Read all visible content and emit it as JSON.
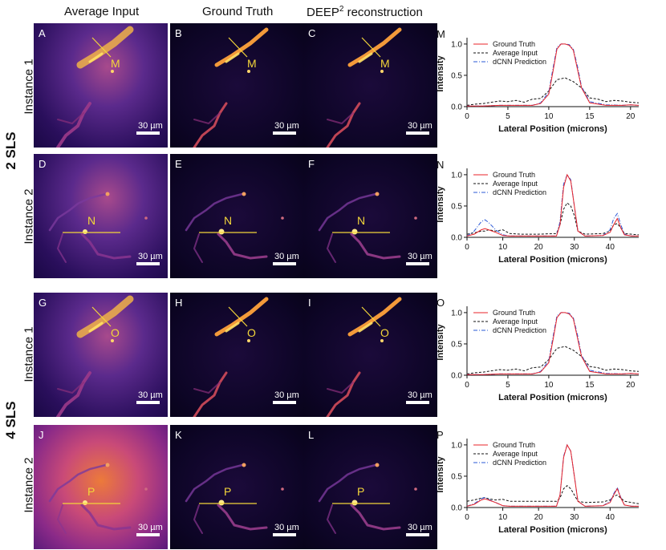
{
  "columns": {
    "average_input": "Average Input",
    "ground_truth": "Ground Truth",
    "deep_reconstruction_main": "DEEP",
    "deep_reconstruction_sup": "2",
    "deep_reconstruction_rest": " reconstruction"
  },
  "instances": [
    "Instance 1",
    "Instance 2",
    "Instance 1",
    "Instance 2"
  ],
  "groups": [
    "2 SLS",
    "4 SLS"
  ],
  "scalebar_text": "30 µm",
  "panels": [
    {
      "letter": "A",
      "profile": "M",
      "style": "avg",
      "instance": 1
    },
    {
      "letter": "B",
      "profile": "M",
      "style": "gt",
      "instance": 1
    },
    {
      "letter": "C",
      "profile": "M",
      "style": "gt",
      "instance": 1
    },
    {
      "letter": "D",
      "profile": "N",
      "style": "avg",
      "instance": 2
    },
    {
      "letter": "E",
      "profile": "N",
      "style": "gt",
      "instance": 2
    },
    {
      "letter": "F",
      "profile": "N",
      "style": "gt",
      "instance": 2
    },
    {
      "letter": "G",
      "profile": "O",
      "style": "avg",
      "instance": 1
    },
    {
      "letter": "H",
      "profile": "O",
      "style": "gt",
      "instance": 1
    },
    {
      "letter": "I",
      "profile": "O",
      "style": "gt",
      "instance": 1
    },
    {
      "letter": "J",
      "profile": "P",
      "style": "avg4",
      "instance": 2
    },
    {
      "letter": "K",
      "profile": "P",
      "style": "gt",
      "instance": 2
    },
    {
      "letter": "L",
      "profile": "P",
      "style": "gt",
      "instance": 2
    }
  ],
  "colors": {
    "ground_truth": "#e8232a",
    "average_input": "#111111",
    "prediction": "#2a58d6",
    "marker": "#f3d63a"
  },
  "chart_data": [
    {
      "type": "line",
      "letter": "M",
      "xlabel": "Lateral Position (microns)",
      "ylabel": "Intensity",
      "xlim": [
        0,
        21
      ],
      "ylim": [
        0,
        1.05
      ],
      "xticks": [
        0,
        5,
        10,
        15,
        20
      ],
      "yticks": [
        0.0,
        0.5,
        1.0
      ],
      "legend": "top-left",
      "series": [
        {
          "name": "Ground Truth",
          "color": "#e8232a",
          "dash": "solid",
          "x": [
            0,
            2,
            4,
            6,
            8,
            9,
            10,
            10.5,
            11,
            11.5,
            12,
            12.5,
            13,
            13.5,
            14,
            15,
            17,
            19,
            20,
            21
          ],
          "y": [
            0.01,
            0.01,
            0.02,
            0.02,
            0.02,
            0.05,
            0.2,
            0.55,
            0.92,
            1.0,
            1.0,
            0.98,
            0.9,
            0.6,
            0.3,
            0.06,
            0.02,
            0.02,
            0.03,
            0.02
          ]
        },
        {
          "name": "Average Input",
          "color": "#111111",
          "dash": "dashed",
          "x": [
            0,
            1,
            2,
            3,
            4,
            5,
            6,
            7,
            8,
            9,
            10,
            11,
            12,
            13,
            14,
            15,
            16,
            17,
            18,
            19,
            20,
            21
          ],
          "y": [
            0.02,
            0.04,
            0.05,
            0.07,
            0.09,
            0.08,
            0.1,
            0.07,
            0.12,
            0.13,
            0.25,
            0.43,
            0.46,
            0.4,
            0.3,
            0.14,
            0.12,
            0.08,
            0.1,
            0.09,
            0.07,
            0.06
          ]
        },
        {
          "name": "dCNN Prediction",
          "color": "#2a58d6",
          "dash": "dashdot",
          "x": [
            0,
            2,
            4,
            6,
            8,
            9,
            10,
            10.5,
            11,
            11.5,
            12,
            12.5,
            13,
            13.5,
            14,
            15,
            17,
            19,
            20,
            21
          ],
          "y": [
            0.01,
            0.01,
            0.02,
            0.02,
            0.02,
            0.06,
            0.23,
            0.6,
            0.95,
            1.0,
            1.0,
            0.99,
            0.92,
            0.65,
            0.32,
            0.08,
            0.03,
            0.02,
            0.03,
            0.02
          ]
        }
      ]
    },
    {
      "type": "line",
      "letter": "N",
      "xlabel": "Lateral Position (microns)",
      "ylabel": "Intensity",
      "xlim": [
        0,
        48
      ],
      "ylim": [
        0,
        1.05
      ],
      "xticks": [
        0,
        10,
        20,
        30,
        40
      ],
      "yticks": [
        0.0,
        0.5,
        1.0
      ],
      "legend": "top-left",
      "series": [
        {
          "name": "Ground Truth",
          "color": "#e8232a",
          "dash": "solid",
          "x": [
            0,
            2,
            4,
            5,
            6,
            8,
            10,
            12,
            15,
            20,
            25,
            26,
            27,
            28,
            29,
            30,
            31,
            33,
            38,
            40,
            41,
            42,
            43,
            44,
            46,
            48
          ],
          "y": [
            0.02,
            0.05,
            0.12,
            0.14,
            0.12,
            0.08,
            0.03,
            0.02,
            0.02,
            0.02,
            0.02,
            0.2,
            0.8,
            1.0,
            0.9,
            0.5,
            0.1,
            0.02,
            0.03,
            0.08,
            0.2,
            0.3,
            0.15,
            0.04,
            0.02,
            0.02
          ]
        },
        {
          "name": "Average Input",
          "color": "#111111",
          "dash": "dashed",
          "x": [
            0,
            2,
            4,
            5,
            6,
            8,
            10,
            12,
            15,
            20,
            25,
            26,
            27,
            28,
            29,
            30,
            31,
            33,
            38,
            40,
            41,
            42,
            43,
            44,
            46,
            48
          ],
          "y": [
            0.05,
            0.07,
            0.1,
            0.1,
            0.12,
            0.1,
            0.12,
            0.06,
            0.05,
            0.05,
            0.06,
            0.2,
            0.45,
            0.55,
            0.5,
            0.35,
            0.1,
            0.05,
            0.06,
            0.1,
            0.2,
            0.22,
            0.15,
            0.06,
            0.05,
            0.04
          ]
        },
        {
          "name": "dCNN Prediction",
          "color": "#2a58d6",
          "dash": "dashdot",
          "x": [
            0,
            2,
            4,
            5,
            6,
            8,
            10,
            12,
            15,
            20,
            25,
            26,
            27,
            28,
            29,
            30,
            31,
            33,
            38,
            40,
            41,
            42,
            43,
            44,
            46,
            48
          ],
          "y": [
            0.02,
            0.1,
            0.25,
            0.28,
            0.24,
            0.12,
            0.04,
            0.02,
            0.02,
            0.02,
            0.02,
            0.25,
            0.85,
            1.0,
            0.92,
            0.5,
            0.1,
            0.02,
            0.03,
            0.12,
            0.3,
            0.38,
            0.2,
            0.05,
            0.02,
            0.02
          ]
        }
      ]
    },
    {
      "type": "line",
      "letter": "O",
      "xlabel": "Lateral Position (microns)",
      "ylabel": "Intensity",
      "xlim": [
        0,
        21
      ],
      "ylim": [
        0,
        1.05
      ],
      "xticks": [
        0,
        5,
        10,
        15,
        20
      ],
      "yticks": [
        0.0,
        0.5,
        1.0
      ],
      "legend": "top-left",
      "series": [
        {
          "name": "Ground Truth",
          "color": "#e8232a",
          "dash": "solid",
          "x": [
            0,
            2,
            4,
            6,
            8,
            9,
            10,
            10.5,
            11,
            11.5,
            12,
            12.5,
            13,
            13.5,
            14,
            15,
            17,
            19,
            20,
            21
          ],
          "y": [
            0.01,
            0.01,
            0.02,
            0.02,
            0.02,
            0.05,
            0.2,
            0.55,
            0.92,
            1.0,
            1.0,
            0.98,
            0.9,
            0.6,
            0.3,
            0.06,
            0.02,
            0.02,
            0.03,
            0.02
          ]
        },
        {
          "name": "Average Input",
          "color": "#111111",
          "dash": "dashed",
          "x": [
            0,
            1,
            2,
            3,
            4,
            5,
            6,
            7,
            8,
            9,
            10,
            11,
            12,
            13,
            14,
            15,
            16,
            17,
            18,
            19,
            20,
            21
          ],
          "y": [
            0.02,
            0.04,
            0.05,
            0.07,
            0.09,
            0.08,
            0.1,
            0.07,
            0.12,
            0.13,
            0.25,
            0.43,
            0.46,
            0.4,
            0.3,
            0.14,
            0.12,
            0.08,
            0.1,
            0.09,
            0.07,
            0.06
          ]
        },
        {
          "name": "dCNN Prediction",
          "color": "#2a58d6",
          "dash": "dashdot",
          "x": [
            0,
            2,
            4,
            6,
            8,
            9,
            10,
            10.5,
            11,
            11.5,
            12,
            12.5,
            13,
            13.5,
            14,
            15,
            17,
            19,
            20,
            21
          ],
          "y": [
            0.01,
            0.01,
            0.02,
            0.02,
            0.02,
            0.06,
            0.23,
            0.6,
            0.95,
            1.0,
            1.0,
            0.99,
            0.92,
            0.65,
            0.32,
            0.08,
            0.03,
            0.02,
            0.03,
            0.02
          ]
        }
      ]
    },
    {
      "type": "line",
      "letter": "P",
      "xlabel": "Lateral Position (microns)",
      "ylabel": "Intensity",
      "xlim": [
        0,
        48
      ],
      "ylim": [
        0,
        1.05
      ],
      "xticks": [
        0,
        10,
        20,
        30,
        40
      ],
      "yticks": [
        0.0,
        0.5,
        1.0
      ],
      "legend": "top-left",
      "series": [
        {
          "name": "Ground Truth",
          "color": "#e8232a",
          "dash": "solid",
          "x": [
            0,
            2,
            4,
            5,
            6,
            8,
            10,
            12,
            15,
            20,
            25,
            26,
            27,
            28,
            29,
            30,
            31,
            33,
            38,
            40,
            41,
            42,
            43,
            44,
            46,
            48
          ],
          "y": [
            0.02,
            0.05,
            0.12,
            0.14,
            0.12,
            0.08,
            0.03,
            0.02,
            0.02,
            0.02,
            0.02,
            0.2,
            0.8,
            1.0,
            0.9,
            0.5,
            0.1,
            0.02,
            0.03,
            0.08,
            0.2,
            0.3,
            0.15,
            0.04,
            0.02,
            0.02
          ]
        },
        {
          "name": "Average Input",
          "color": "#111111",
          "dash": "dashed",
          "x": [
            0,
            2,
            4,
            5,
            6,
            8,
            10,
            12,
            15,
            20,
            25,
            26,
            27,
            28,
            29,
            30,
            31,
            33,
            38,
            40,
            41,
            42,
            43,
            44,
            46,
            48
          ],
          "y": [
            0.1,
            0.12,
            0.15,
            0.16,
            0.14,
            0.12,
            0.13,
            0.1,
            0.1,
            0.1,
            0.1,
            0.15,
            0.3,
            0.35,
            0.3,
            0.2,
            0.1,
            0.08,
            0.09,
            0.12,
            0.18,
            0.2,
            0.15,
            0.1,
            0.08,
            0.06
          ]
        },
        {
          "name": "dCNN Prediction",
          "color": "#2a58d6",
          "dash": "dashdot",
          "x": [
            0,
            2,
            4,
            5,
            6,
            8,
            10,
            12,
            15,
            20,
            25,
            26,
            27,
            28,
            29,
            30,
            31,
            33,
            38,
            40,
            41,
            42,
            43,
            44,
            46,
            48
          ],
          "y": [
            0.02,
            0.06,
            0.14,
            0.16,
            0.13,
            0.08,
            0.03,
            0.02,
            0.02,
            0.02,
            0.02,
            0.2,
            0.82,
            1.0,
            0.9,
            0.5,
            0.1,
            0.02,
            0.03,
            0.1,
            0.22,
            0.32,
            0.16,
            0.04,
            0.02,
            0.02
          ]
        }
      ]
    }
  ]
}
